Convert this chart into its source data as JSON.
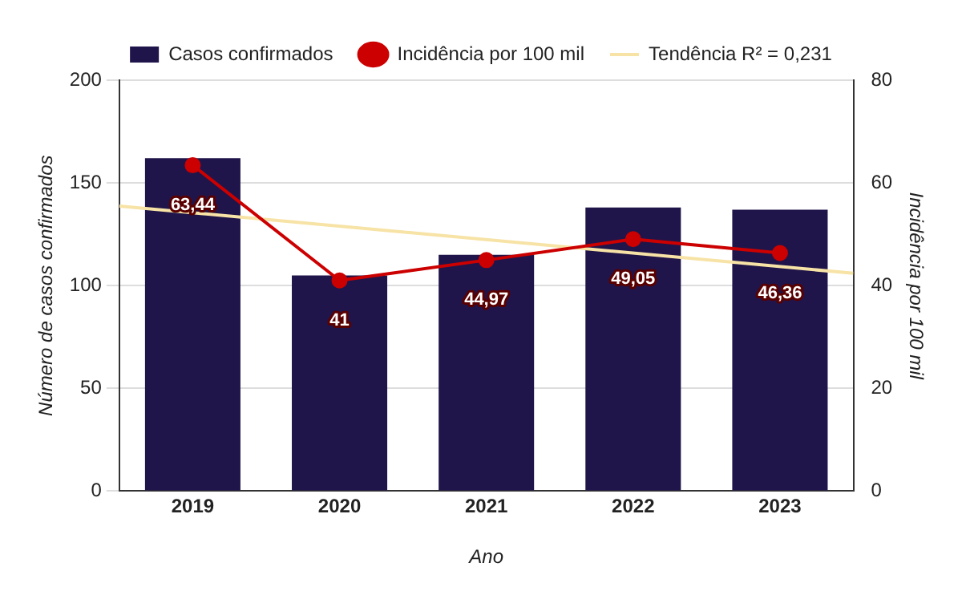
{
  "chart_data": {
    "type": "bar",
    "x": [
      2019,
      2020,
      2021,
      2022,
      2023
    ],
    "xlim": [
      2018.5,
      2023.5
    ],
    "xticks": [
      2019,
      2020,
      2021,
      2022,
      2023
    ],
    "xlabel": "Ano",
    "ylabel": "Número de casos confirmados",
    "y2label": "Incidência por 100 mil",
    "ylim": [
      0,
      200
    ],
    "yticks": [
      0,
      50,
      100,
      150,
      200
    ],
    "y2lim": [
      0,
      80
    ],
    "y2ticks": [
      0,
      20,
      40,
      60,
      80
    ],
    "series": [
      {
        "name": "Casos confirmados",
        "color": "#20154a",
        "values": [
          162,
          105,
          115,
          138,
          137
        ]
      },
      {
        "name": "Incidência por 100 mil",
        "type": "line",
        "axis": "y2",
        "color": "#cc0000",
        "marker": "circle",
        "values": [
          63.44,
          41,
          44.97,
          49.05,
          46.36
        ],
        "value_labels": [
          "63,44",
          "41",
          "44,97",
          "49,05",
          "46,36"
        ]
      },
      {
        "name": "Tendência R² = 0,231",
        "type": "line",
        "axis": "y2",
        "color": "#f7e3a6",
        "marker": "none",
        "x": [
          2018.5,
          2023.5
        ],
        "values": [
          55.5,
          42.4
        ]
      }
    ],
    "grid": "y",
    "legend": "top"
  }
}
